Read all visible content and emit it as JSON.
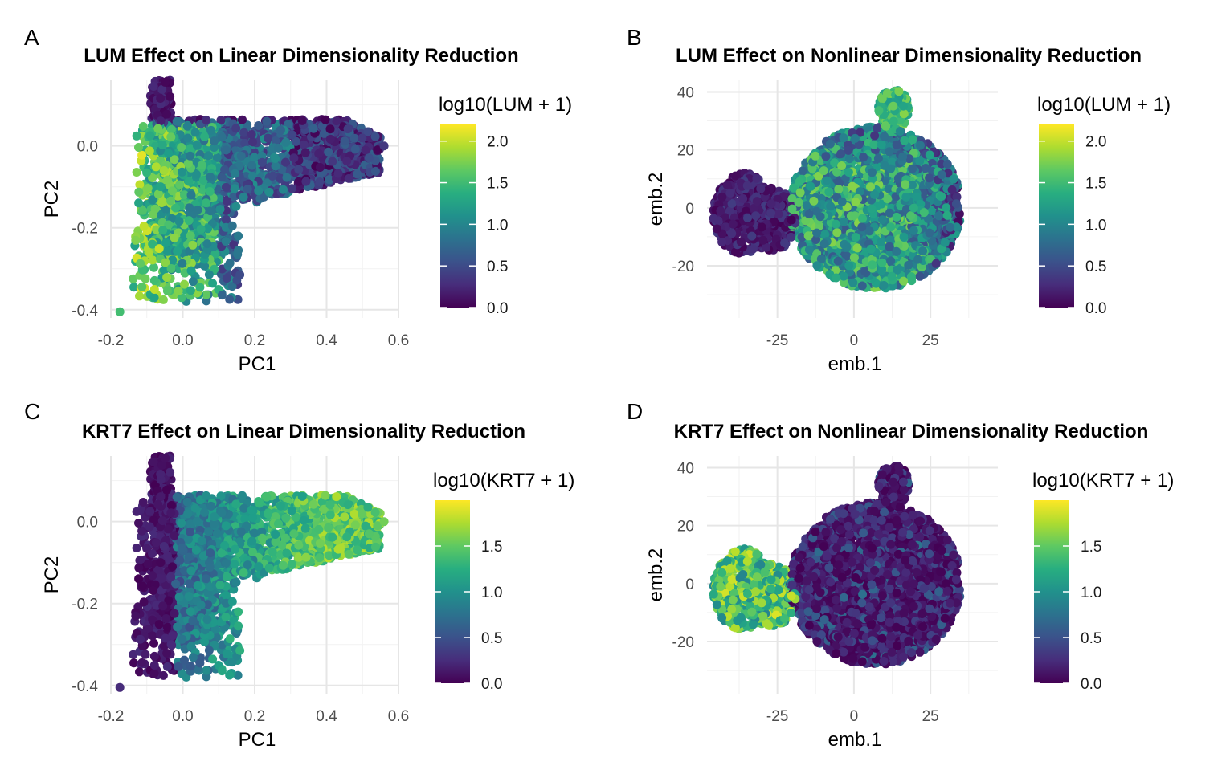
{
  "chart_data": [
    {
      "panel": "A",
      "type": "scatter",
      "title": "LUM Effect on Linear Dimensionality Reduction",
      "xlabel": "PC1",
      "ylabel": "PC2",
      "xlim": [
        -0.2,
        0.6
      ],
      "ylim": [
        -0.42,
        0.16
      ],
      "xticks": [
        -0.2,
        0.0,
        0.2,
        0.4,
        0.6
      ],
      "xtick_labels": [
        "-0.2",
        "0.0",
        "0.2",
        "0.4",
        "0.6"
      ],
      "yticks": [
        -0.4,
        -0.2,
        0.0
      ],
      "ytick_labels": [
        "-0.4",
        "-0.2",
        "0.0"
      ],
      "grid": true,
      "legend": {
        "title": "log10(LUM + 1)",
        "placement": "right",
        "range": [
          0.0,
          2.2
        ],
        "ticks": [
          0.0,
          0.5,
          1.0,
          1.5,
          2.0
        ],
        "tick_labels": [
          "0.0",
          "0.5",
          "1.0",
          "1.5",
          "2.0"
        ]
      },
      "colormap": "viridis",
      "embedding": "pca",
      "gene": "LUM"
    },
    {
      "panel": "B",
      "type": "scatter",
      "title": "LUM Effect on Nonlinear Dimensionality Reduction",
      "xlabel": "emb.1",
      "ylabel": "emb.2",
      "xlim": [
        -48,
        47
      ],
      "ylim": [
        -38,
        44
      ],
      "xticks": [
        -25,
        0,
        25
      ],
      "xtick_labels": [
        "-25",
        "0",
        "25"
      ],
      "yticks": [
        -20,
        0,
        20,
        40
      ],
      "ytick_labels": [
        "-20",
        "0",
        "20",
        "40"
      ],
      "grid": true,
      "legend": {
        "title": "log10(LUM + 1)",
        "placement": "right",
        "range": [
          0.0,
          2.2
        ],
        "ticks": [
          0.0,
          0.5,
          1.0,
          1.5,
          2.0
        ],
        "tick_labels": [
          "0.0",
          "0.5",
          "1.0",
          "1.5",
          "2.0"
        ]
      },
      "colormap": "viridis",
      "embedding": "nonlinear",
      "gene": "LUM"
    },
    {
      "panel": "C",
      "type": "scatter",
      "title": "KRT7 Effect on Linear Dimensionality Reduction",
      "xlabel": "PC1",
      "ylabel": "PC2",
      "xlim": [
        -0.2,
        0.6
      ],
      "ylim": [
        -0.42,
        0.16
      ],
      "xticks": [
        -0.2,
        0.0,
        0.2,
        0.4,
        0.6
      ],
      "xtick_labels": [
        "-0.2",
        "0.0",
        "0.2",
        "0.4",
        "0.6"
      ],
      "yticks": [
        -0.4,
        -0.2,
        0.0
      ],
      "ytick_labels": [
        "-0.4",
        "-0.2",
        "0.0"
      ],
      "grid": true,
      "legend": {
        "title": "log10(KRT7 + 1)",
        "placement": "right",
        "range": [
          0.0,
          2.0
        ],
        "ticks": [
          0.0,
          0.5,
          1.0,
          1.5
        ],
        "tick_labels": [
          "0.0",
          "0.5",
          "1.0",
          "1.5"
        ]
      },
      "colormap": "viridis",
      "embedding": "pca",
      "gene": "KRT7"
    },
    {
      "panel": "D",
      "type": "scatter",
      "title": "KRT7 Effect on Nonlinear Dimensionality Reduction",
      "xlabel": "emb.1",
      "ylabel": "emb.2",
      "xlim": [
        -48,
        47
      ],
      "ylim": [
        -38,
        44
      ],
      "xticks": [
        -25,
        0,
        25
      ],
      "xtick_labels": [
        "-25",
        "0",
        "25"
      ],
      "yticks": [
        -20,
        0,
        20,
        40
      ],
      "ytick_labels": [
        "-20",
        "0",
        "20",
        "40"
      ],
      "grid": true,
      "legend": {
        "title": "log10(KRT7 + 1)",
        "placement": "right",
        "range": [
          0.0,
          2.0
        ],
        "ticks": [
          0.0,
          0.5,
          1.0,
          1.5
        ],
        "tick_labels": [
          "0.0",
          "0.5",
          "1.0",
          "1.5"
        ]
      },
      "colormap": "viridis",
      "embedding": "nonlinear",
      "gene": "KRT7"
    }
  ]
}
